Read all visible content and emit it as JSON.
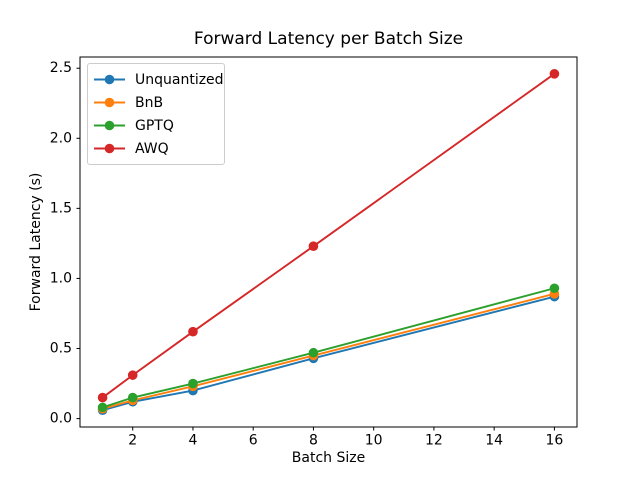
{
  "figure": {
    "background": "#ffffff",
    "axis_color": "#000000"
  },
  "chart_data": {
    "type": "line",
    "title": "Forward Latency per Batch Size",
    "xlabel": "Batch Size",
    "ylabel": "Forward Latency (s)",
    "x": [
      1,
      2,
      4,
      8,
      16
    ],
    "series": [
      {
        "name": "Unquantized",
        "color": "#1f77b4",
        "values": [
          0.06,
          0.12,
          0.2,
          0.43,
          0.87
        ]
      },
      {
        "name": "BnB",
        "color": "#ff7f0e",
        "values": [
          0.07,
          0.13,
          0.23,
          0.45,
          0.89
        ]
      },
      {
        "name": "GPTQ",
        "color": "#2ca02c",
        "values": [
          0.08,
          0.15,
          0.25,
          0.47,
          0.93
        ]
      },
      {
        "name": "AWQ",
        "color": "#d62728",
        "values": [
          0.15,
          0.31,
          0.62,
          1.23,
          2.46
        ]
      }
    ],
    "xlim": [
      0.25,
      16.75
    ],
    "ylim": [
      -0.06,
      2.58
    ],
    "xticks": [
      2,
      4,
      6,
      8,
      10,
      12,
      14,
      16
    ],
    "xticklabels": [
      "2",
      "4",
      "6",
      "8",
      "10",
      "12",
      "14",
      "16"
    ],
    "yticks": [
      0.0,
      0.5,
      1.0,
      1.5,
      2.0,
      2.5
    ],
    "yticklabels": [
      "0.0",
      "0.5",
      "1.0",
      "1.5",
      "2.0",
      "2.5"
    ],
    "grid": false,
    "legend_position": "upper left",
    "marker": "o"
  }
}
